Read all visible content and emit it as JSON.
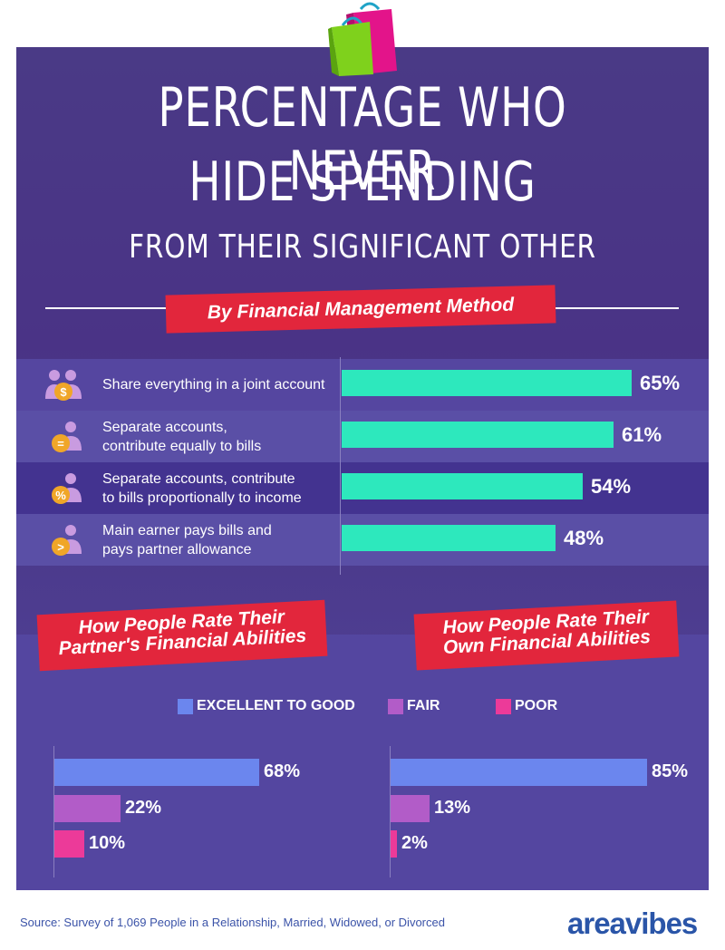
{
  "header": {
    "title_line1": "PERCENTAGE WHO NEVER",
    "title_line2": "HIDE SPENDING",
    "subtitle": "FROM THEIR SIGNIFICANT OTHER",
    "section_ribbon": "By Financial Management Method"
  },
  "chart_data": [
    {
      "type": "bar",
      "orientation": "horizontal",
      "title": "By Financial Management Method",
      "categories": [
        "Share everything in a joint account",
        "Separate accounts,\ncontribute equally to bills",
        "Separate accounts, contribute\nto bills proportionally to income",
        "Main earner pays bills and\npays partner allowance"
      ],
      "values": [
        65,
        61,
        54,
        48
      ],
      "labels": [
        "65%",
        "61%",
        "54%",
        "48%"
      ],
      "icons": [
        "dollar-people-icon",
        "equals-person-icon",
        "percent-person-icon",
        "greater-than-person-icon"
      ],
      "color": "#2de8bd",
      "xlim": [
        0,
        100
      ]
    },
    {
      "type": "bar",
      "orientation": "horizontal",
      "title": "How People Rate Their\nPartner's Financial Abilities",
      "categories": [
        "EXCELLENT TO GOOD",
        "FAIR",
        "POOR"
      ],
      "values": [
        68,
        22,
        10
      ],
      "labels": [
        "68%",
        "22%",
        "10%"
      ],
      "colors": [
        "#6b86ee",
        "#b25cc8",
        "#ec3a99"
      ],
      "xlim": [
        0,
        100
      ]
    },
    {
      "type": "bar",
      "orientation": "horizontal",
      "title": "How People Rate Their\nOwn Financial Abilities",
      "categories": [
        "EXCELLENT TO GOOD",
        "FAIR",
        "POOR"
      ],
      "values": [
        85,
        13,
        2
      ],
      "labels": [
        "85%",
        "13%",
        "2%"
      ],
      "colors": [
        "#6b86ee",
        "#b25cc8",
        "#ec3a99"
      ],
      "xlim": [
        0,
        100
      ]
    }
  ],
  "legend": [
    {
      "label": "EXCELLENT TO GOOD",
      "color": "#6b86ee"
    },
    {
      "label": "FAIR",
      "color": "#b25cc8"
    },
    {
      "label": "POOR",
      "color": "#ec3a99"
    }
  ],
  "footer": {
    "source": "Source: Survey of 1,069 People in a Relationship, Married, Widowed, or Divorced",
    "logo": "areavibes"
  },
  "colors": {
    "ribbon": "#e2263c",
    "bar_main": "#2de8bd",
    "panel": "#4a3a86"
  }
}
